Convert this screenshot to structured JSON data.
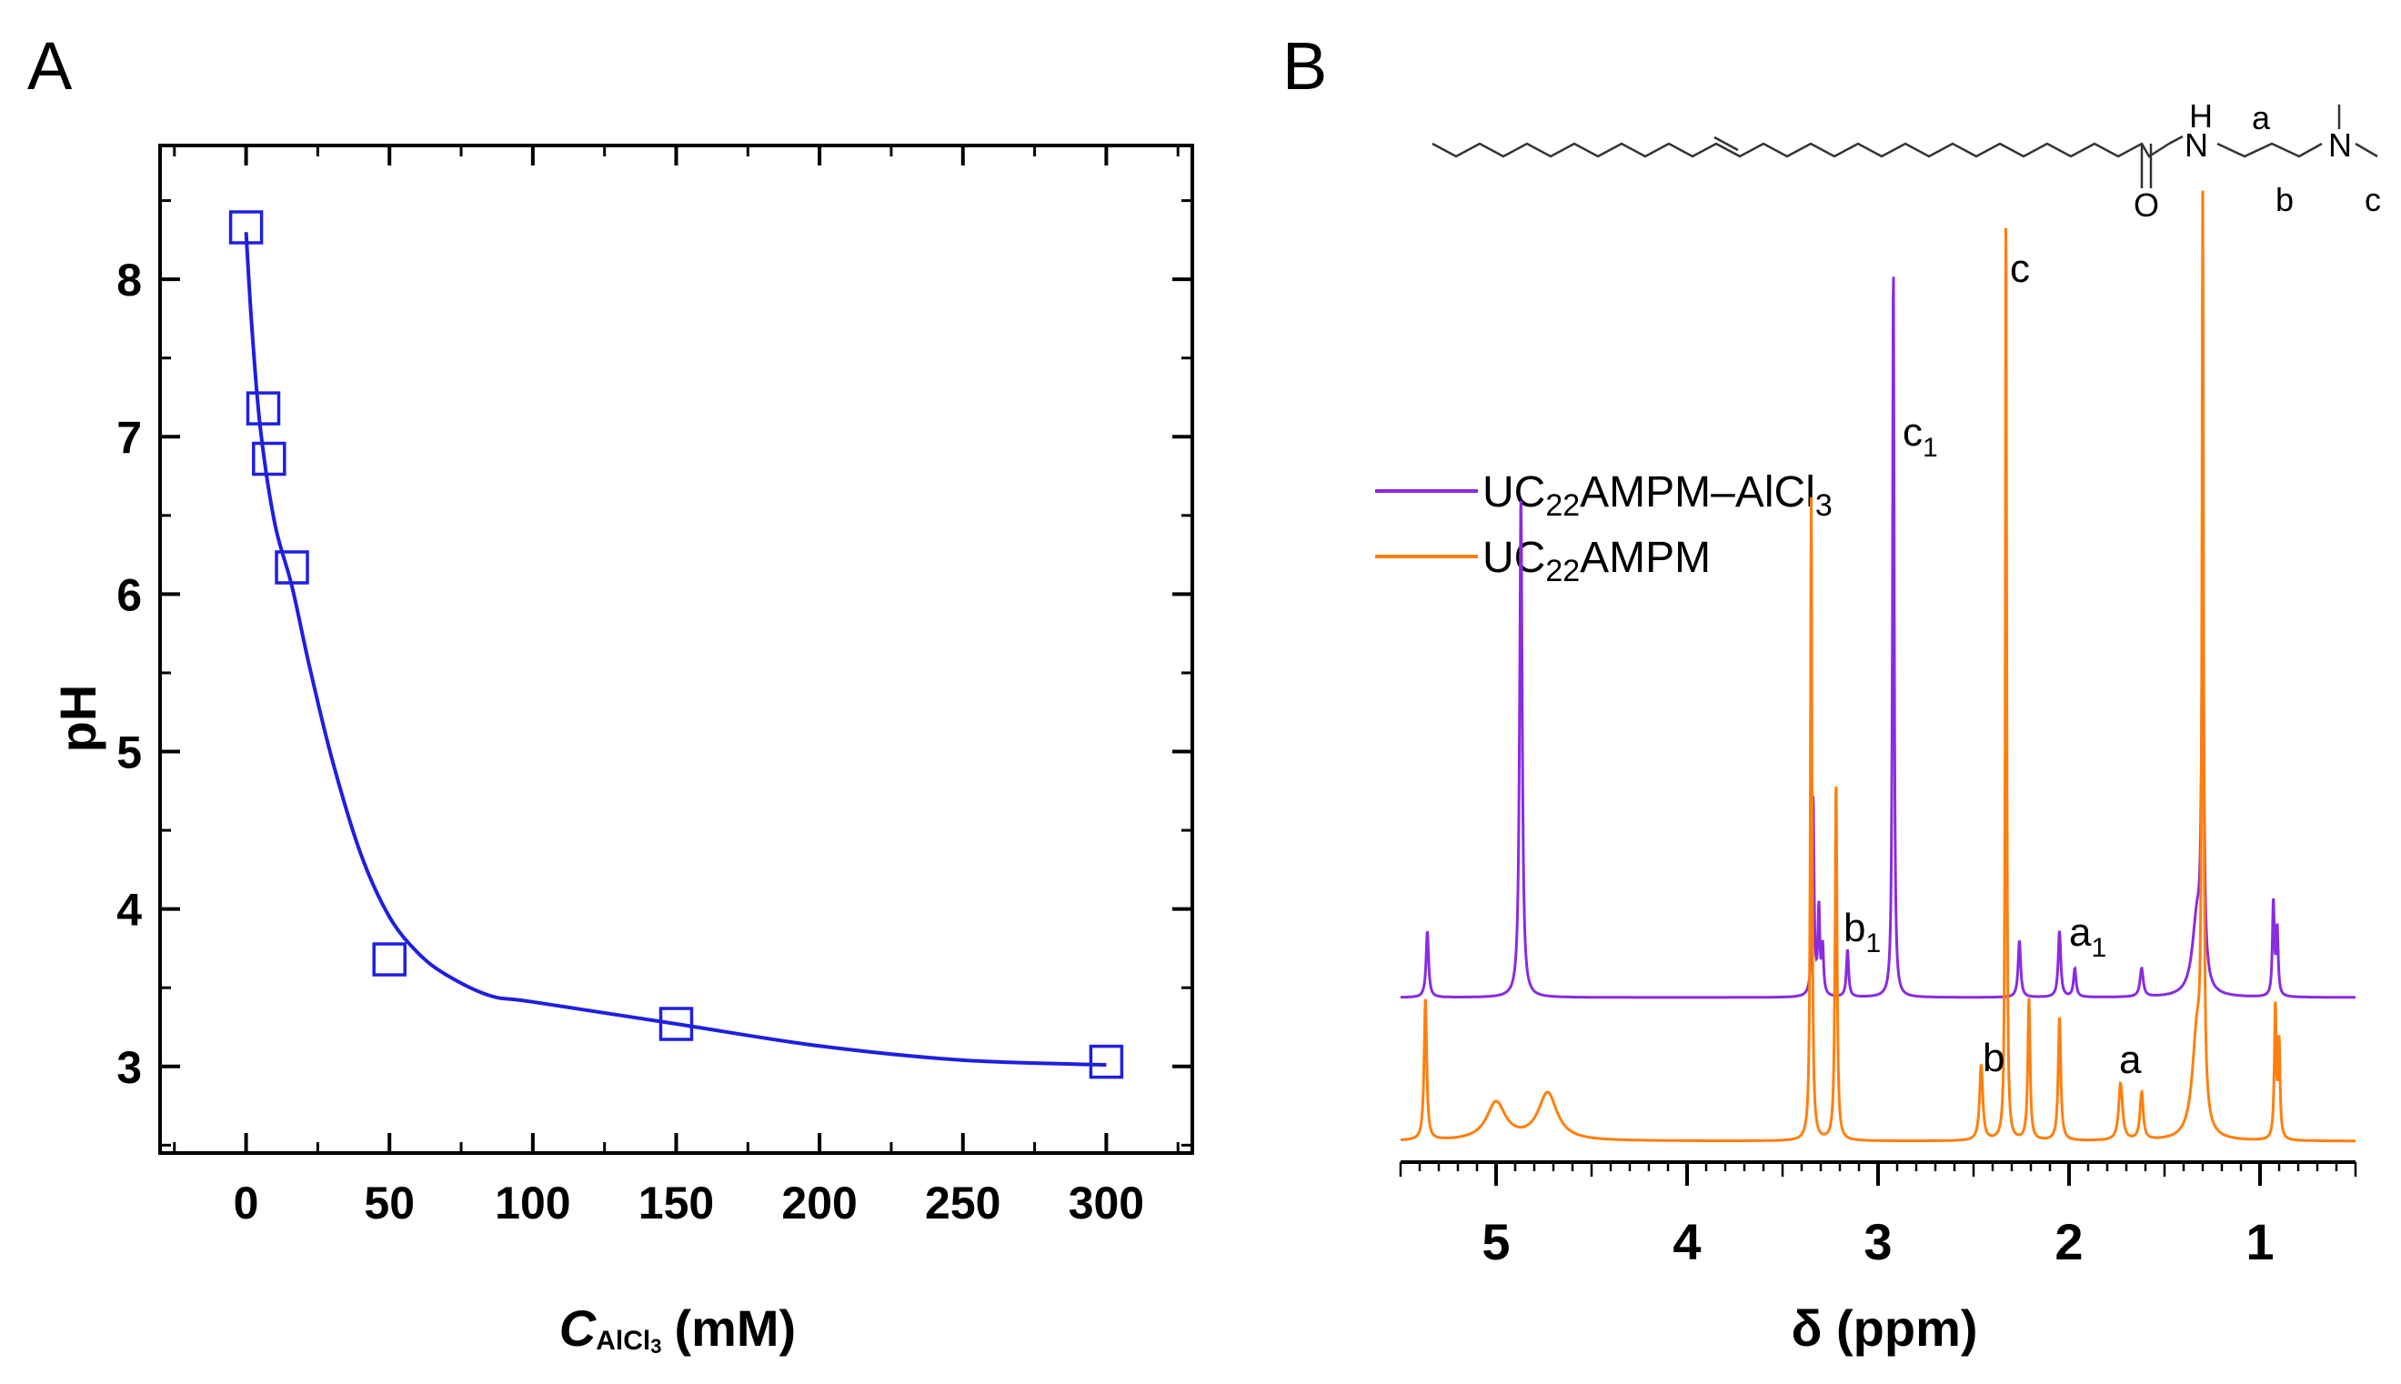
{
  "figure": {
    "panel_a_label": "A",
    "panel_b_label": "B"
  },
  "chart_data": [
    {
      "type": "scatter",
      "panel": "A",
      "series": [
        {
          "name": "pH vs AlCl3 concentration",
          "color": "#1f1fe0",
          "marker": "open-square",
          "points": [
            [
              0,
              8.33
            ],
            [
              6,
              7.18
            ],
            [
              8,
              6.86
            ],
            [
              16,
              6.17
            ],
            [
              50,
              3.68
            ],
            [
              150,
              3.27
            ],
            [
              300,
              3.03
            ]
          ],
          "fit_curve": [
            [
              0,
              8.3
            ],
            [
              2,
              7.7
            ],
            [
              5,
              7.05
            ],
            [
              10,
              6.45
            ],
            [
              16,
              6.05
            ],
            [
              22,
              5.55
            ],
            [
              30,
              4.95
            ],
            [
              40,
              4.35
            ],
            [
              50,
              3.95
            ],
            [
              60,
              3.72
            ],
            [
              70,
              3.58
            ],
            [
              85,
              3.45
            ],
            [
              100,
              3.41
            ],
            [
              150,
              3.27
            ],
            [
              200,
              3.13
            ],
            [
              250,
              3.04
            ],
            [
              300,
              3.01
            ]
          ]
        }
      ],
      "xlabel_main": "C",
      "xlabel_sub": "AlCl",
      "xlabel_sub2": "3",
      "xlabel_unit": "(mM)",
      "ylabel": "pH",
      "xlim": [
        -30,
        330
      ],
      "ylim": [
        2.45,
        8.85
      ],
      "xticks": [
        0,
        50,
        100,
        150,
        200,
        250,
        300
      ],
      "yticks": [
        3,
        4,
        5,
        6,
        7,
        8
      ],
      "xtick_labels": [
        "0",
        "50",
        "100",
        "150",
        "200",
        "250",
        "300"
      ],
      "ytick_labels": [
        "3",
        "4",
        "5",
        "6",
        "7",
        "8"
      ]
    },
    {
      "type": "line",
      "panel": "B",
      "xlabel": "δ (ppm)",
      "xlim": [
        5.5,
        0.5
      ],
      "xaxis_reversed": true,
      "xticks": [
        5,
        4,
        3,
        2,
        1
      ],
      "xtick_labels": [
        "5",
        "4",
        "3",
        "2",
        "1"
      ],
      "legend": [
        {
          "label_main": "UC",
          "label_sub": "22",
          "label_rest": "AMPM–AlCl",
          "label_sub2": "3",
          "color": "#8a2be2"
        },
        {
          "label_main": "UC",
          "label_sub": "22",
          "label_rest": "AMPM",
          "label_sub2": "",
          "color": "#ff7f0e"
        }
      ],
      "series": [
        {
          "name": "UC22AMPM–AlCl3",
          "color": "#8a2be2",
          "baseline": 0,
          "peaks": [
            {
              "ppm": 5.36,
              "height": 0.07,
              "width": 0.008
            },
            {
              "ppm": 4.87,
              "height": 0.53,
              "width": 0.008
            },
            {
              "ppm": 3.34,
              "height": 0.21,
              "width": 0.006
            },
            {
              "ppm": 3.31,
              "height": 0.09,
              "width": 0.006
            },
            {
              "ppm": 3.29,
              "height": 0.05,
              "width": 0.006
            },
            {
              "ppm": 3.16,
              "height": 0.05,
              "width": 0.007
            },
            {
              "ppm": 2.92,
              "height": 0.78,
              "width": 0.005
            },
            {
              "ppm": 2.26,
              "height": 0.06,
              "width": 0.008
            },
            {
              "ppm": 2.05,
              "height": 0.07,
              "width": 0.008
            },
            {
              "ppm": 1.97,
              "height": 0.03,
              "width": 0.008
            },
            {
              "ppm": 1.62,
              "height": 0.03,
              "width": 0.01
            },
            {
              "ppm": 1.33,
              "height": 0.08,
              "width": 0.03
            },
            {
              "ppm": 1.3,
              "height": 0.42,
              "width": 0.007
            },
            {
              "ppm": 0.93,
              "height": 0.1,
              "width": 0.006
            },
            {
              "ppm": 0.91,
              "height": 0.07,
              "width": 0.006
            }
          ]
        },
        {
          "name": "UC22AMPM",
          "color": "#ff7f0e",
          "baseline": 0,
          "peaks": [
            {
              "ppm": 5.37,
              "height": 0.15,
              "width": 0.008
            },
            {
              "ppm": 5.0,
              "height": 0.04,
              "width": 0.06
            },
            {
              "ppm": 4.73,
              "height": 0.05,
              "width": 0.06
            },
            {
              "ppm": 3.35,
              "height": 0.68,
              "width": 0.005
            },
            {
              "ppm": 3.22,
              "height": 0.38,
              "width": 0.006
            },
            {
              "ppm": 2.46,
              "height": 0.08,
              "width": 0.01
            },
            {
              "ppm": 2.33,
              "height": 1.0,
              "width": 0.004
            },
            {
              "ppm": 2.21,
              "height": 0.15,
              "width": 0.007
            },
            {
              "ppm": 2.05,
              "height": 0.13,
              "width": 0.008
            },
            {
              "ppm": 1.73,
              "height": 0.06,
              "width": 0.012
            },
            {
              "ppm": 1.62,
              "height": 0.05,
              "width": 0.01
            },
            {
              "ppm": 1.33,
              "height": 0.11,
              "width": 0.03
            },
            {
              "ppm": 1.3,
              "height": 0.95,
              "width": 0.005
            },
            {
              "ppm": 0.92,
              "height": 0.14,
              "width": 0.006
            },
            {
              "ppm": 0.9,
              "height": 0.1,
              "width": 0.006
            }
          ]
        }
      ],
      "annotations": {
        "upper": [
          {
            "text": "c",
            "sub": "1",
            "ppm": 2.92
          },
          {
            "text": "b",
            "sub": "1",
            "ppm": 3.13
          },
          {
            "text": "a",
            "sub": "1",
            "ppm": 1.97
          }
        ],
        "lower": [
          {
            "text": "c",
            "sub": "",
            "ppm": 2.33
          },
          {
            "text": "b",
            "sub": "",
            "ppm": 2.46
          },
          {
            "text": "a",
            "sub": "",
            "ppm": 1.73
          }
        ]
      }
    }
  ],
  "structure": {
    "nh_h": "H",
    "nh_n": "N",
    "carbonyl_o": "O",
    "amine_n": "N",
    "label_a": "a",
    "label_b": "b",
    "label_c": "c"
  }
}
